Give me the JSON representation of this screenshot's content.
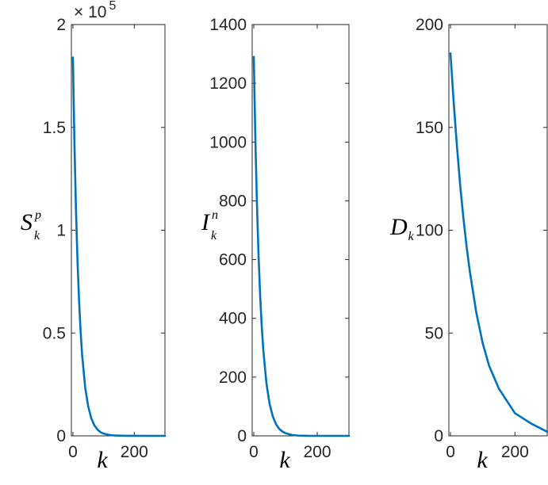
{
  "chart_data": [
    {
      "type": "line",
      "xlabel": "k",
      "ylabel": {
        "base": "S",
        "sub": "k",
        "sup": "p"
      },
      "xlim": [
        -5,
        300
      ],
      "ylim": [
        0,
        200000
      ],
      "xticks": [
        0,
        200
      ],
      "xtick_labels": [
        "0",
        "200"
      ],
      "yticks": [
        0,
        50000,
        100000,
        150000,
        200000
      ],
      "ytick_labels": [
        "0",
        "0.5",
        "1",
        "1.5",
        "2"
      ],
      "multiplier": {
        "base": "× 10",
        "exponent": "5"
      },
      "series": [
        {
          "color": "#0072BD",
          "x": [
            0,
            5,
            10,
            15,
            20,
            25,
            30,
            40,
            50,
            60,
            70,
            80,
            90,
            100,
            120,
            140,
            160,
            180,
            200,
            250,
            300
          ],
          "y": [
            184000,
            142000,
            110000,
            85000,
            66000,
            51000,
            39500,
            23500,
            14200,
            8500,
            5100,
            3100,
            1800,
            1100,
            400,
            150,
            60,
            20,
            10,
            2,
            0
          ]
        }
      ]
    },
    {
      "type": "line",
      "xlabel": "k",
      "ylabel": {
        "base": "I",
        "sub": "k",
        "sup": "n"
      },
      "xlim": [
        -5,
        300
      ],
      "ylim": [
        0,
        1400
      ],
      "xticks": [
        0,
        200
      ],
      "xtick_labels": [
        "0",
        "200"
      ],
      "yticks": [
        0,
        200,
        400,
        600,
        800,
        1000,
        1200,
        1400
      ],
      "ytick_labels": [
        "0",
        "200",
        "400",
        "600",
        "800",
        "1000",
        "1200",
        "1400"
      ],
      "series": [
        {
          "color": "#0072BD",
          "x": [
            0,
            5,
            10,
            15,
            20,
            25,
            30,
            40,
            50,
            60,
            70,
            80,
            90,
            100,
            120,
            140,
            160,
            180,
            200,
            250,
            300
          ],
          "y": [
            1290,
            1010,
            790,
            615,
            480,
            375,
            293,
            178,
            108,
            66,
            40,
            24,
            15,
            9,
            3,
            1,
            0.5,
            0,
            0,
            0,
            0
          ]
        }
      ]
    },
    {
      "type": "line",
      "xlabel": "k",
      "ylabel": {
        "base": "D",
        "sub": "k",
        "sup": ""
      },
      "xlim": [
        -5,
        300
      ],
      "ylim": [
        0,
        200
      ],
      "xticks": [
        0,
        200
      ],
      "xtick_labels": [
        "0",
        "200"
      ],
      "yticks": [
        0,
        50,
        100,
        150,
        200
      ],
      "ytick_labels": [
        "0",
        "50",
        "100",
        "150",
        "200"
      ],
      "series": [
        {
          "color": "#0072BD",
          "x": [
            0,
            10,
            20,
            30,
            40,
            50,
            60,
            80,
            100,
            120,
            150,
            200,
            250,
            300
          ],
          "y": [
            186,
            162,
            141,
            122,
            106,
            92,
            80,
            60,
            45,
            34,
            23,
            11,
            6,
            2
          ]
        }
      ]
    }
  ]
}
